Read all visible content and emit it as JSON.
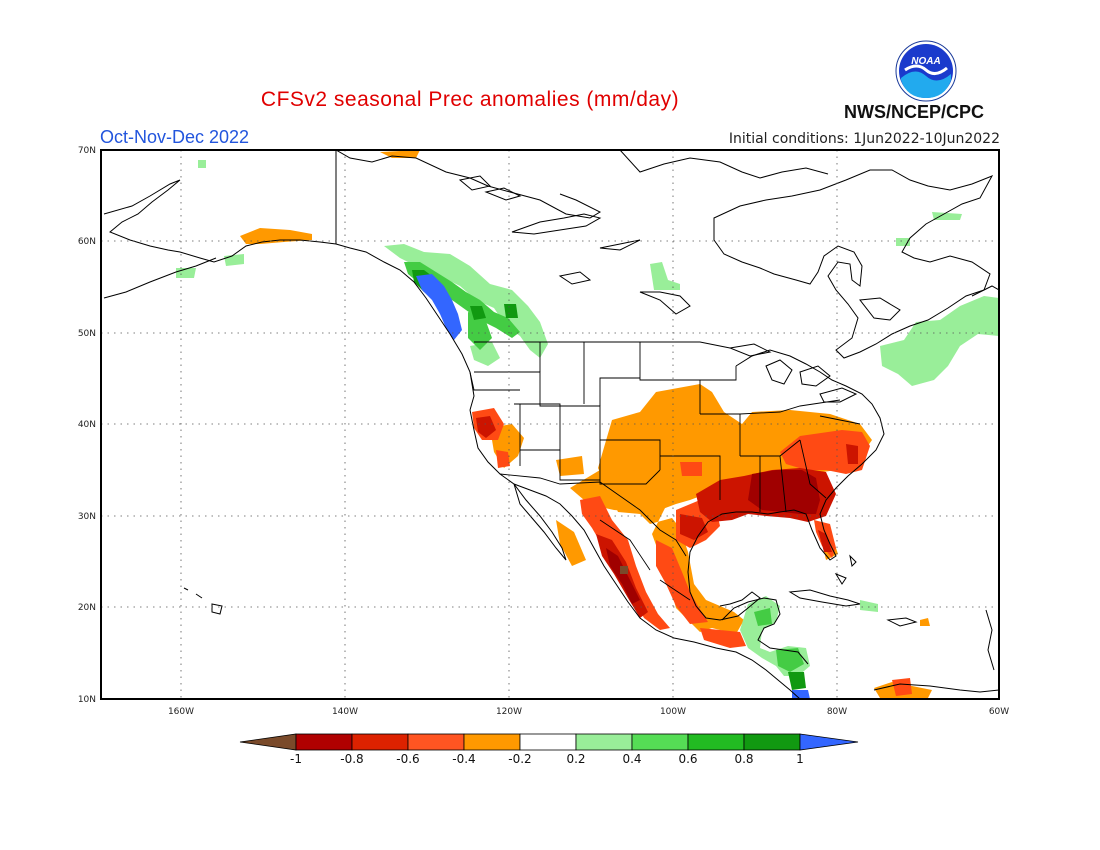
{
  "title": "CFSv2 seasonal Prec anomalies (mm/day)",
  "period": "Oct-Nov-Dec 2022",
  "initial_conditions": "Initial conditions: 1Jun2022-10Jun2022",
  "agency": "NWS/NCEP/CPC",
  "logo_text": "NOAA",
  "map": {
    "lon_ticks": [
      "160W",
      "140W",
      "120W",
      "100W",
      "80W",
      "60W"
    ],
    "lat_ticks": [
      "70N",
      "60N",
      "50N",
      "40N",
      "30N",
      "20N",
      "10N"
    ]
  },
  "colorbar": {
    "labels": [
      "-1",
      "-0.8",
      "-0.6",
      "-0.4",
      "-0.2",
      "0.2",
      "0.4",
      "0.6",
      "0.8",
      "1"
    ],
    "colors": [
      "#7a4a2a",
      "#b00000",
      "#dd2200",
      "#ff5522",
      "#ff9900",
      "#ffffff",
      "#99ee99",
      "#55dd55",
      "#22bb22",
      "#119911",
      "#3366ff"
    ]
  }
}
